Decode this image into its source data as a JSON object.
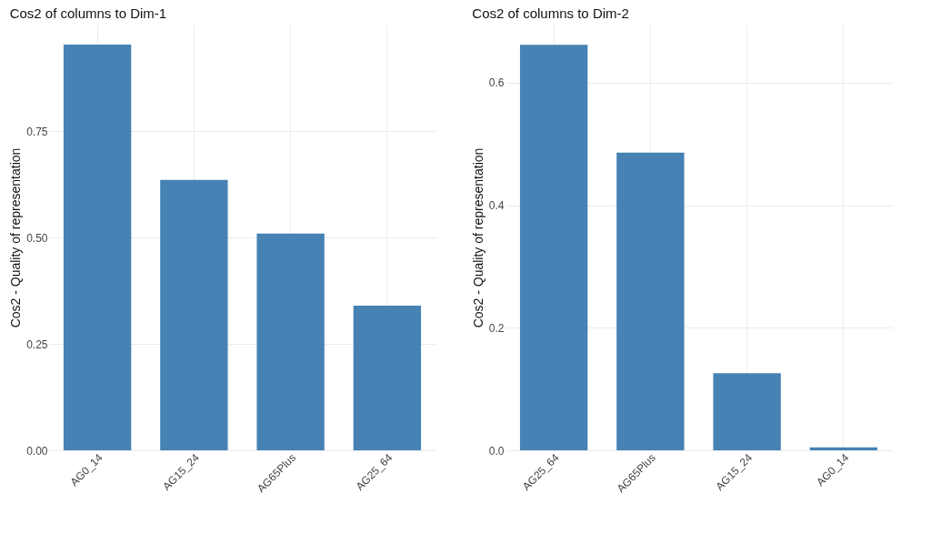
{
  "chart_data": [
    {
      "type": "bar",
      "title": "Cos2 of columns to Dim-1",
      "ylabel": "Cos2 - Quality of representation",
      "categories": [
        "AG0_14",
        "AG15_24",
        "AG65Plus",
        "AG25_64"
      ],
      "values": [
        0.953,
        0.635,
        0.509,
        0.34
      ],
      "color": "#4682b4",
      "ylim": [
        0,
        1.0
      ],
      "yticks": [
        {
          "value": 0,
          "label": "0.00"
        },
        {
          "value": 0.25,
          "label": "0.25"
        },
        {
          "value": 0.5,
          "label": "0.50"
        },
        {
          "value": 0.75,
          "label": "0.75"
        }
      ],
      "grid": true
    },
    {
      "type": "bar",
      "title": "Cos2 of columns to Dim-2",
      "ylabel": "Cos2 - Quality of representation",
      "categories": [
        "AG25_64",
        "AG65Plus",
        "AG15_24",
        "AG0_14"
      ],
      "values": [
        0.662,
        0.486,
        0.126,
        0.005
      ],
      "color": "#4682b4",
      "ylim": [
        0,
        0.695
      ],
      "yticks": [
        {
          "value": 0,
          "label": "0.0"
        },
        {
          "value": 0.2,
          "label": "0.2"
        },
        {
          "value": 0.4,
          "label": "0.4"
        },
        {
          "value": 0.6,
          "label": "0.6"
        }
      ],
      "grid": true
    }
  ]
}
